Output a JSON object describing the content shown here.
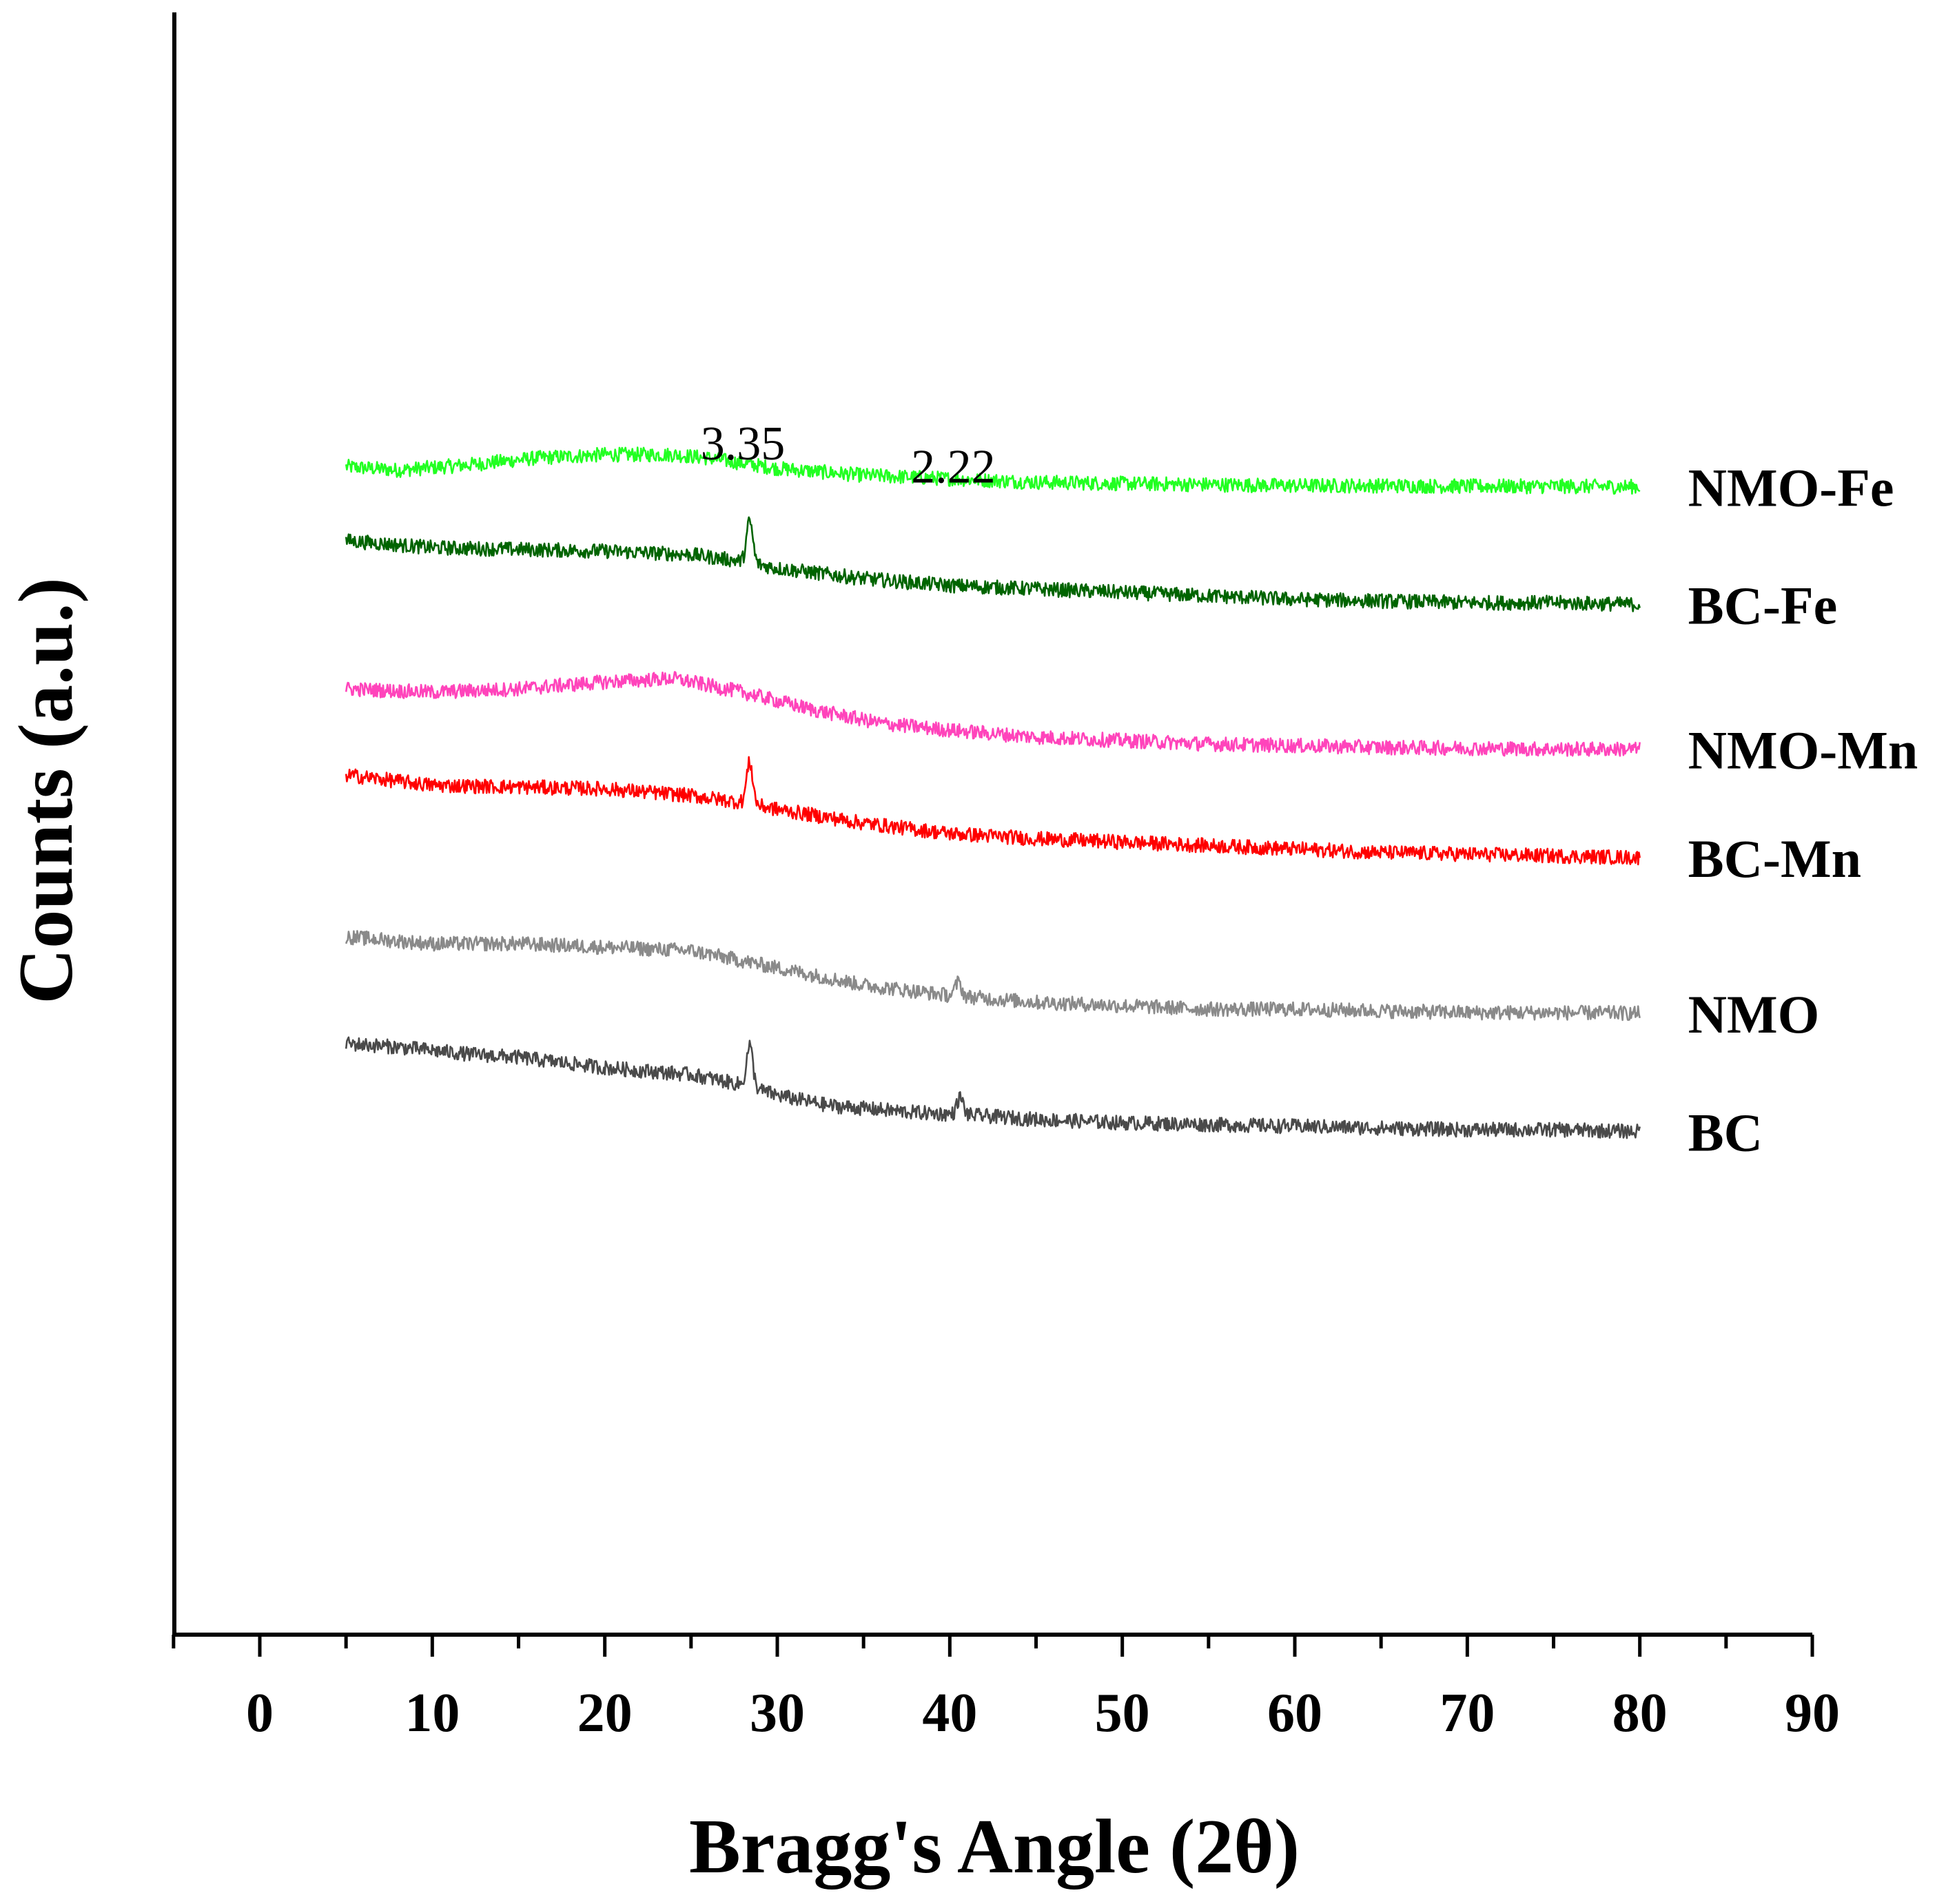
{
  "chart_data": {
    "type": "line",
    "xlabel": "Bragg's Angle (2θ)",
    "ylabel": "Counts (a.u.)",
    "xlim": [
      -5,
      90
    ],
    "xticks": [
      0,
      10,
      20,
      30,
      40,
      50,
      60,
      70,
      80,
      90
    ],
    "x_range": [
      5,
      80
    ],
    "y_ticks_shown": false,
    "series": [
      {
        "name": "NMO-Fe",
        "color": "#22ff22",
        "offset": 100,
        "points": [
          [
            5,
            5.5
          ],
          [
            8,
            4.5
          ],
          [
            12,
            6
          ],
          [
            16,
            8
          ],
          [
            20,
            9
          ],
          [
            24,
            9
          ],
          [
            26,
            8
          ],
          [
            30,
            5
          ],
          [
            35,
            3
          ],
          [
            40,
            2
          ],
          [
            45,
            1
          ],
          [
            50,
            0.6
          ],
          [
            55,
            0.3
          ],
          [
            60,
            0
          ],
          [
            65,
            0
          ],
          [
            70,
            -0.2
          ],
          [
            75,
            -0.2
          ],
          [
            80,
            -0.3
          ]
        ],
        "peaks": []
      },
      {
        "name": "BC-Fe",
        "color": "#006400",
        "offset": 75,
        "points": [
          [
            5,
            9
          ],
          [
            10,
            7
          ],
          [
            15,
            6.5
          ],
          [
            20,
            6
          ],
          [
            25,
            5
          ],
          [
            28,
            3
          ],
          [
            30,
            1
          ],
          [
            35,
            -2
          ],
          [
            40,
            -4
          ],
          [
            45,
            -5
          ],
          [
            50,
            -6
          ],
          [
            55,
            -7
          ],
          [
            60,
            -8
          ],
          [
            65,
            -8.5
          ],
          [
            70,
            -9
          ],
          [
            75,
            -9
          ],
          [
            80,
            -9.5
          ]
        ],
        "peaks": [
          [
            28.4,
            12
          ]
        ]
      },
      {
        "name": "NMO-Mn",
        "color": "#ff44bb",
        "offset": 25,
        "points": [
          [
            5,
            16
          ],
          [
            10,
            15
          ],
          [
            15,
            16
          ],
          [
            20,
            18
          ],
          [
            24,
            19
          ],
          [
            28,
            15
          ],
          [
            32,
            10
          ],
          [
            36,
            6
          ],
          [
            40,
            4
          ],
          [
            45,
            2
          ],
          [
            50,
            1
          ],
          [
            55,
            0
          ],
          [
            60,
            -0.5
          ],
          [
            65,
            -1
          ],
          [
            70,
            -1.2
          ],
          [
            75,
            -1.5
          ],
          [
            80,
            -1.5
          ]
        ],
        "peaks": []
      },
      {
        "name": "BC-Mn",
        "color": "#ff0000",
        "offset": 0,
        "points": [
          [
            5,
            16
          ],
          [
            10,
            13
          ],
          [
            15,
            12.5
          ],
          [
            20,
            12
          ],
          [
            25,
            10
          ],
          [
            28,
            8
          ],
          [
            30,
            6
          ],
          [
            35,
            2
          ],
          [
            40,
            -1
          ],
          [
            45,
            -2.5
          ],
          [
            50,
            -3.5
          ],
          [
            55,
            -4.5
          ],
          [
            60,
            -5.5
          ],
          [
            65,
            -6.5
          ],
          [
            70,
            -7
          ],
          [
            75,
            -7.5
          ],
          [
            80,
            -8
          ]
        ],
        "peaks": [
          [
            28.4,
            12
          ]
        ]
      },
      {
        "name": "NMO",
        "color": "#8a8a8a",
        "offset": -50,
        "points": [
          [
            5,
            19
          ],
          [
            10,
            17
          ],
          [
            15,
            17
          ],
          [
            20,
            16
          ],
          [
            25,
            15
          ],
          [
            30,
            10
          ],
          [
            35,
            5
          ],
          [
            40,
            2
          ],
          [
            45,
            0
          ],
          [
            50,
            -1
          ],
          [
            55,
            -2
          ],
          [
            60,
            -2
          ],
          [
            65,
            -2.5
          ],
          [
            70,
            -3
          ],
          [
            75,
            -3
          ],
          [
            80,
            -3.2
          ]
        ],
        "peaks": [
          [
            40.5,
            4
          ]
        ]
      },
      {
        "name": "BC",
        "color": "#4a4a4a",
        "offset": -75,
        "points": [
          [
            5,
            13
          ],
          [
            8,
            12
          ],
          [
            12,
            10
          ],
          [
            15,
            9
          ],
          [
            20,
            6
          ],
          [
            25,
            4
          ],
          [
            28,
            1
          ],
          [
            30,
            -2
          ],
          [
            33,
            -5
          ],
          [
            38,
            -7
          ],
          [
            42,
            -8
          ],
          [
            45,
            -9
          ],
          [
            50,
            -10
          ],
          [
            55,
            -10.5
          ],
          [
            60,
            -11
          ],
          [
            65,
            -11.5
          ],
          [
            70,
            -12
          ],
          [
            75,
            -12
          ],
          [
            80,
            -12.5
          ]
        ],
        "peaks": [
          [
            28.4,
            12
          ],
          [
            40.6,
            5
          ]
        ]
      }
    ],
    "annotations": [
      {
        "text": "3.35",
        "x": 28.4,
        "series": "BC-Fe"
      },
      {
        "text": "2.22",
        "x": 40.6,
        "series": "BC-Fe"
      }
    ]
  }
}
